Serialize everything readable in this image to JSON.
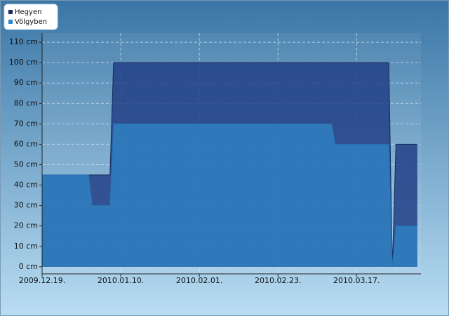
{
  "chart_data": {
    "type": "area",
    "x": [
      "2009-12-19",
      "2010-01-01",
      "2010-01-02",
      "2010-01-07",
      "2010-01-08",
      "2010-03-10",
      "2010-03-11",
      "2010-03-26",
      "2010-03-27",
      "2010-03-28",
      "2010-04-03"
    ],
    "series": [
      {
        "name": "Hegyen",
        "color": "#223f86",
        "values": [
          45,
          45,
          45,
          45,
          100,
          100,
          100,
          100,
          0,
          60,
          60
        ]
      },
      {
        "name": "Völgyben",
        "color": "#2f7bbd",
        "values": [
          45,
          45,
          30,
          30,
          70,
          70,
          60,
          60,
          0,
          20,
          20
        ]
      }
    ],
    "xlim": [
      "2009-12-19",
      "2010-04-04"
    ],
    "xticks": [
      {
        "value": "2009-12-19",
        "label": "2009.12.19."
      },
      {
        "value": "2010-01-10",
        "label": "2010.01.10."
      },
      {
        "value": "2010-02-01",
        "label": "2010.02.01."
      },
      {
        "value": "2010-02-23",
        "label": "2010.02.23."
      },
      {
        "value": "2010-03-17",
        "label": "2010.03.17."
      }
    ],
    "ylim": [
      -3.5,
      114.5
    ],
    "yticks": [
      {
        "value": 0,
        "label": "0 cm"
      },
      {
        "value": 10,
        "label": "10 cm"
      },
      {
        "value": 20,
        "label": "20 cm"
      },
      {
        "value": 30,
        "label": "30 cm"
      },
      {
        "value": 40,
        "label": "40 cm"
      },
      {
        "value": 50,
        "label": "50 cm"
      },
      {
        "value": 60,
        "label": "60 cm"
      },
      {
        "value": 70,
        "label": "70 cm"
      },
      {
        "value": 80,
        "label": "80 cm"
      },
      {
        "value": 90,
        "label": "90 cm"
      },
      {
        "value": 100,
        "label": "100 cm"
      },
      {
        "value": 110,
        "label": "110 cm"
      }
    ],
    "grid": true,
    "legend": "top-left"
  }
}
